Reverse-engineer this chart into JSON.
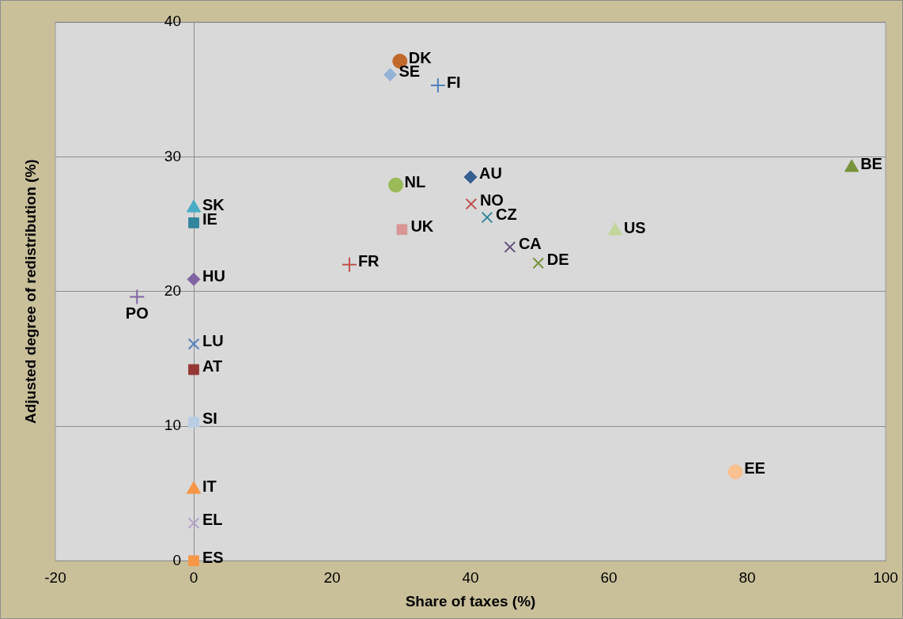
{
  "chart_data": {
    "type": "scatter",
    "xlabel": "Share of taxes (%)",
    "ylabel": "Adjusted degree of redistribution (%)",
    "xlim": [
      -20,
      100
    ],
    "xticks": [
      -20,
      0,
      20,
      40,
      60,
      80,
      100
    ],
    "ylim": [
      0,
      40
    ],
    "yticks": [
      0,
      10,
      20,
      30,
      40
    ],
    "grid": "y",
    "legend": false,
    "series": [
      {
        "name": "DK",
        "color": "#c0692a",
        "marker": "circle",
        "x": [
          29.8
        ],
        "values": [
          37.1
        ]
      },
      {
        "name": "SE",
        "color": "#95b3d7",
        "marker": "diamond",
        "x": [
          28.4
        ],
        "values": [
          36.1
        ]
      },
      {
        "name": "FI",
        "color": "#4f81bd",
        "marker": "plus",
        "x": [
          35.3
        ],
        "values": [
          35.3
        ]
      },
      {
        "name": "AU",
        "color": "#376092",
        "marker": "diamond",
        "x": [
          40.0
        ],
        "values": [
          28.5
        ]
      },
      {
        "name": "NL",
        "color": "#9bbb59",
        "marker": "circle",
        "x": [
          29.2
        ],
        "values": [
          27.9
        ]
      },
      {
        "name": "NO",
        "color": "#c0504d",
        "marker": "cross",
        "x": [
          40.1
        ],
        "values": [
          26.5
        ]
      },
      {
        "name": "CZ",
        "color": "#31859c",
        "marker": "cross",
        "x": [
          42.4
        ],
        "values": [
          25.5
        ]
      },
      {
        "name": "UK",
        "color": "#d99694",
        "marker": "square",
        "x": [
          30.1
        ],
        "values": [
          24.6
        ]
      },
      {
        "name": "CA",
        "color": "#604a7b",
        "marker": "cross",
        "x": [
          45.7
        ],
        "values": [
          23.3
        ]
      },
      {
        "name": "DE",
        "color": "#77933c",
        "marker": "cross",
        "x": [
          49.8
        ],
        "values": [
          22.1
        ]
      },
      {
        "name": "FR",
        "color": "#c0504d",
        "marker": "plus",
        "x": [
          22.5
        ],
        "values": [
          22.0
        ]
      },
      {
        "name": "US",
        "color": "#c3d69b",
        "marker": "triangle",
        "x": [
          60.9
        ],
        "values": [
          24.5
        ]
      },
      {
        "name": "BE",
        "color": "#77933c",
        "marker": "triangle",
        "x": [
          95.1
        ],
        "values": [
          29.2
        ]
      },
      {
        "name": "EE",
        "color": "#fac090",
        "marker": "circle",
        "x": [
          78.3
        ],
        "values": [
          6.6
        ]
      },
      {
        "name": "SK",
        "color": "#4bacc6",
        "marker": "triangle",
        "x": [
          0
        ],
        "values": [
          26.2
        ]
      },
      {
        "name": "IE",
        "color": "#31859c",
        "marker": "square",
        "x": [
          0
        ],
        "values": [
          25.1
        ]
      },
      {
        "name": "HU",
        "color": "#8064a2",
        "marker": "diamond",
        "x": [
          0
        ],
        "values": [
          20.9
        ]
      },
      {
        "name": "PO",
        "color": "#8064a2",
        "marker": "plus",
        "x": [
          -8.2
        ],
        "values": [
          19.6
        ]
      },
      {
        "name": "LU",
        "color": "#4f81bd",
        "marker": "cross",
        "x": [
          0
        ],
        "values": [
          16.1
        ]
      },
      {
        "name": "AT",
        "color": "#953735",
        "marker": "square",
        "x": [
          0
        ],
        "values": [
          14.2
        ]
      },
      {
        "name": "SI",
        "color": "#b9cde5",
        "marker": "square",
        "x": [
          0
        ],
        "values": [
          10.3
        ]
      },
      {
        "name": "IT",
        "color": "#f79646",
        "marker": "triangle",
        "x": [
          0
        ],
        "values": [
          5.3
        ]
      },
      {
        "name": "EL",
        "color": "#b3a2c7",
        "marker": "cross",
        "x": [
          0
        ],
        "values": [
          2.8
        ]
      },
      {
        "name": "ES",
        "color": "#f79646",
        "marker": "square",
        "x": [
          0
        ],
        "values": [
          0
        ]
      }
    ]
  }
}
